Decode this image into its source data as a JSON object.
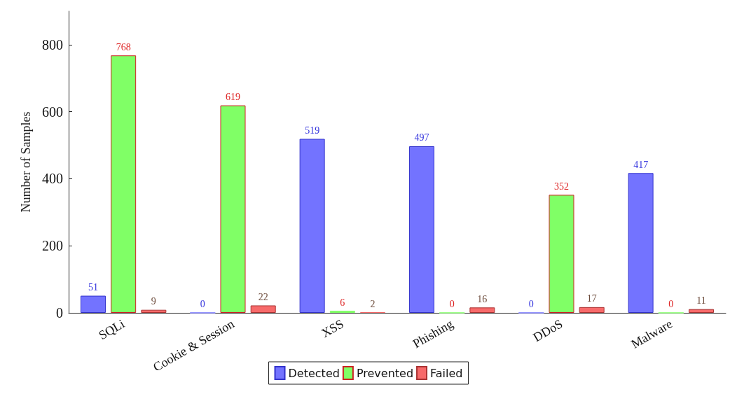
{
  "chart_data": {
    "type": "bar",
    "ylabel": "Number of Samples",
    "categories": [
      "SQLi",
      "Cookie & Session",
      "XSS",
      "Phishing",
      "DDoS",
      "Malware"
    ],
    "series": [
      {
        "name": "Detected",
        "color": "#7373ff",
        "values": [
          51,
          0,
          519,
          497,
          0,
          417
        ]
      },
      {
        "name": "Prevented",
        "color": "#80ff66",
        "values": [
          768,
          619,
          6,
          0,
          352,
          0
        ]
      },
      {
        "name": "Failed",
        "color": "#f76a6a",
        "values": [
          9,
          22,
          2,
          16,
          17,
          11
        ]
      }
    ],
    "ylim": [
      0,
      900
    ],
    "yticks": [
      0,
      200,
      400,
      600,
      800
    ],
    "grid": false,
    "legend": "bottom",
    "data_labels": true
  }
}
